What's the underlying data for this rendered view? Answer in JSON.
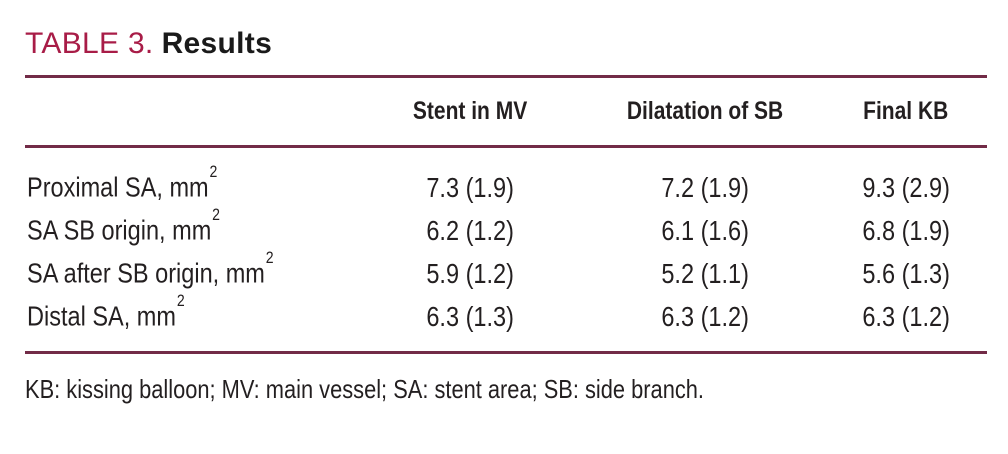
{
  "title": {
    "number": "TABLE 3.",
    "text": "Results"
  },
  "table": {
    "column_headers": [
      "Stent in MV",
      "Dilatation of SB",
      "Final KB"
    ],
    "rows": [
      {
        "label": "Proximal SA, mm",
        "label_sup": "2",
        "values": [
          "7.3 (1.9)",
          "7.2 (1.9)",
          "9.3 (2.9)"
        ]
      },
      {
        "label": "SA SB origin, mm",
        "label_sup": "2",
        "values": [
          "6.2 (1.2)",
          "6.1 (1.6)",
          "6.8 (1.9)"
        ]
      },
      {
        "label": "SA after SB origin, mm",
        "label_sup": "2",
        "values": [
          "5.9 (1.2)",
          "5.2 (1.1)",
          "5.6 (1.3)"
        ]
      },
      {
        "label": "Distal SA, mm",
        "label_sup": "2",
        "values": [
          "6.3 (1.3)",
          "6.3 (1.2)",
          "6.3 (1.2)"
        ]
      }
    ],
    "footnote": "KB: kissing balloon; MV: main vessel; SA: stent area; SB: side branch."
  },
  "colors": {
    "accent_crimson": "#A81C47",
    "rule_maroon": "#722B47",
    "text_black": "#231F20"
  }
}
